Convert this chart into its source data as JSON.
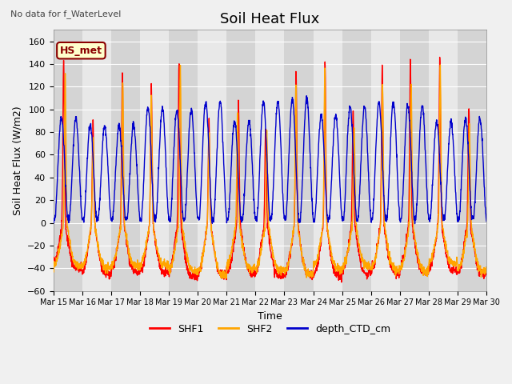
{
  "title": "Soil Heat Flux",
  "xlabel": "Time",
  "ylabel": "Soil Heat Flux (W/m2)",
  "ylim": [
    -60,
    170
  ],
  "yticks": [
    -60,
    -40,
    -20,
    0,
    20,
    40,
    60,
    80,
    100,
    120,
    140,
    160
  ],
  "figsize": [
    6.4,
    4.8
  ],
  "dpi": 100,
  "fig_bg_color": "#f0f0f0",
  "plot_bg_color": "#e8e8e8",
  "stripe_dark": "#d4d4d4",
  "stripe_light": "#e8e8e8",
  "line_colors": {
    "SHF1": "#ff0000",
    "SHF2": "#ffa500",
    "depth_CTD_cm": "#0000cc"
  },
  "annotation_text": "No data for f_WaterLevel",
  "annotation_color": "#444444",
  "box_label": "HS_met",
  "box_facecolor": "#ffffcc",
  "box_edgecolor": "#8b0000",
  "box_textcolor": "#8b0000",
  "xtick_labels": [
    "Mar 15",
    "Mar 16",
    "Mar 17",
    "Mar 18",
    "Mar 19",
    "Mar 20",
    "Mar 21",
    "Mar 22",
    "Mar 23",
    "Mar 24",
    "Mar 25",
    "Mar 26",
    "Mar 27",
    "Mar 28",
    "Mar 29",
    "Mar 30"
  ],
  "num_days": 15,
  "grid_color": "#ffffff",
  "linewidth": 1.0,
  "title_fontsize": 13,
  "label_fontsize": 9,
  "tick_fontsize": 8,
  "legend_fontsize": 9
}
